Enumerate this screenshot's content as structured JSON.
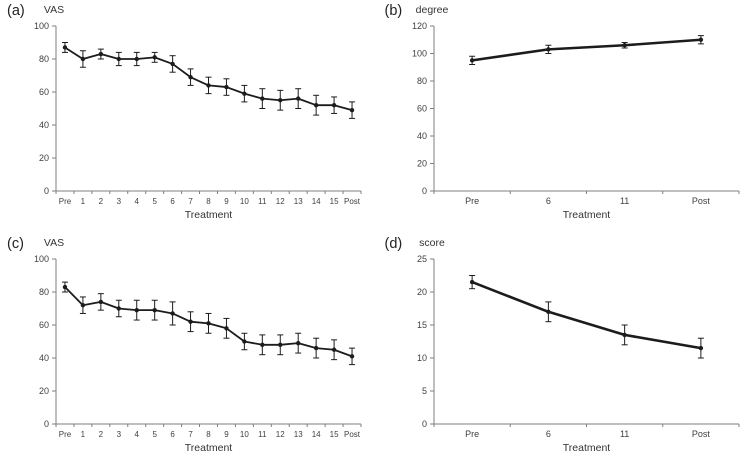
{
  "figure": {
    "background": "#ffffff",
    "line_color": "#1c1c1c",
    "axis_color": "#7f7f7f",
    "text_color": "#404040"
  },
  "chart_data": [
    {
      "type": "line",
      "panel_label": "(a)",
      "title": "",
      "ylabel": "VAS",
      "xlabel": "Treatment",
      "categories": [
        "Pre",
        "1",
        "2",
        "3",
        "4",
        "5",
        "6",
        "7",
        "8",
        "9",
        "10",
        "11",
        "12",
        "13",
        "14",
        "15",
        "Post"
      ],
      "series": [
        {
          "name": "VAS",
          "values": [
            87,
            80,
            83,
            80,
            80,
            81,
            77,
            69,
            64,
            63,
            59,
            56,
            55,
            56,
            52,
            52,
            49
          ],
          "errors": [
            3,
            5,
            3,
            4,
            4,
            3,
            5,
            5,
            5,
            5,
            5,
            6,
            6,
            6,
            6,
            5,
            5
          ]
        }
      ],
      "ylim": [
        0,
        100
      ],
      "yticks": [
        0,
        20,
        40,
        60,
        80,
        100
      ],
      "grid": false,
      "legend": "none",
      "error_bars": true,
      "marker": "circle"
    },
    {
      "type": "line",
      "panel_label": "(b)",
      "title": "",
      "ylabel": "degree",
      "xlabel": "Treatment",
      "categories": [
        "Pre",
        "6",
        "11",
        "Post"
      ],
      "series": [
        {
          "name": "degree",
          "values": [
            95,
            103,
            106,
            110
          ],
          "errors": [
            3,
            3,
            2,
            3
          ]
        }
      ],
      "ylim": [
        0,
        120
      ],
      "yticks": [
        0,
        20,
        40,
        60,
        80,
        100,
        120
      ],
      "grid": false,
      "legend": "none",
      "error_bars": true,
      "marker": "circle"
    },
    {
      "type": "line",
      "panel_label": "(c)",
      "title": "",
      "ylabel": "VAS",
      "xlabel": "Treatment",
      "categories": [
        "Pre",
        "1",
        "2",
        "3",
        "4",
        "5",
        "6",
        "7",
        "8",
        "9",
        "10",
        "11",
        "12",
        "13",
        "14",
        "15",
        "Post"
      ],
      "series": [
        {
          "name": "VAS",
          "values": [
            83,
            72,
            74,
            70,
            69,
            69,
            67,
            62,
            61,
            58,
            50,
            48,
            48,
            49,
            46,
            45,
            41
          ],
          "errors": [
            3,
            5,
            5,
            5,
            6,
            6,
            7,
            6,
            6,
            6,
            5,
            6,
            6,
            6,
            6,
            6,
            5
          ]
        }
      ],
      "ylim": [
        0,
        100
      ],
      "yticks": [
        0,
        20,
        40,
        60,
        80,
        100
      ],
      "grid": false,
      "legend": "none",
      "error_bars": true,
      "marker": "circle"
    },
    {
      "type": "line",
      "panel_label": "(d)",
      "title": "",
      "ylabel": "score",
      "xlabel": "Treatment",
      "categories": [
        "Pre",
        "6",
        "11",
        "Post"
      ],
      "series": [
        {
          "name": "score",
          "values": [
            21.5,
            17,
            13.5,
            11.5
          ],
          "errors": [
            1,
            1.5,
            1.5,
            1.5
          ]
        }
      ],
      "ylim": [
        0,
        25
      ],
      "yticks": [
        0,
        5,
        10,
        15,
        20,
        25
      ],
      "grid": false,
      "legend": "none",
      "error_bars": true,
      "marker": "circle"
    }
  ]
}
